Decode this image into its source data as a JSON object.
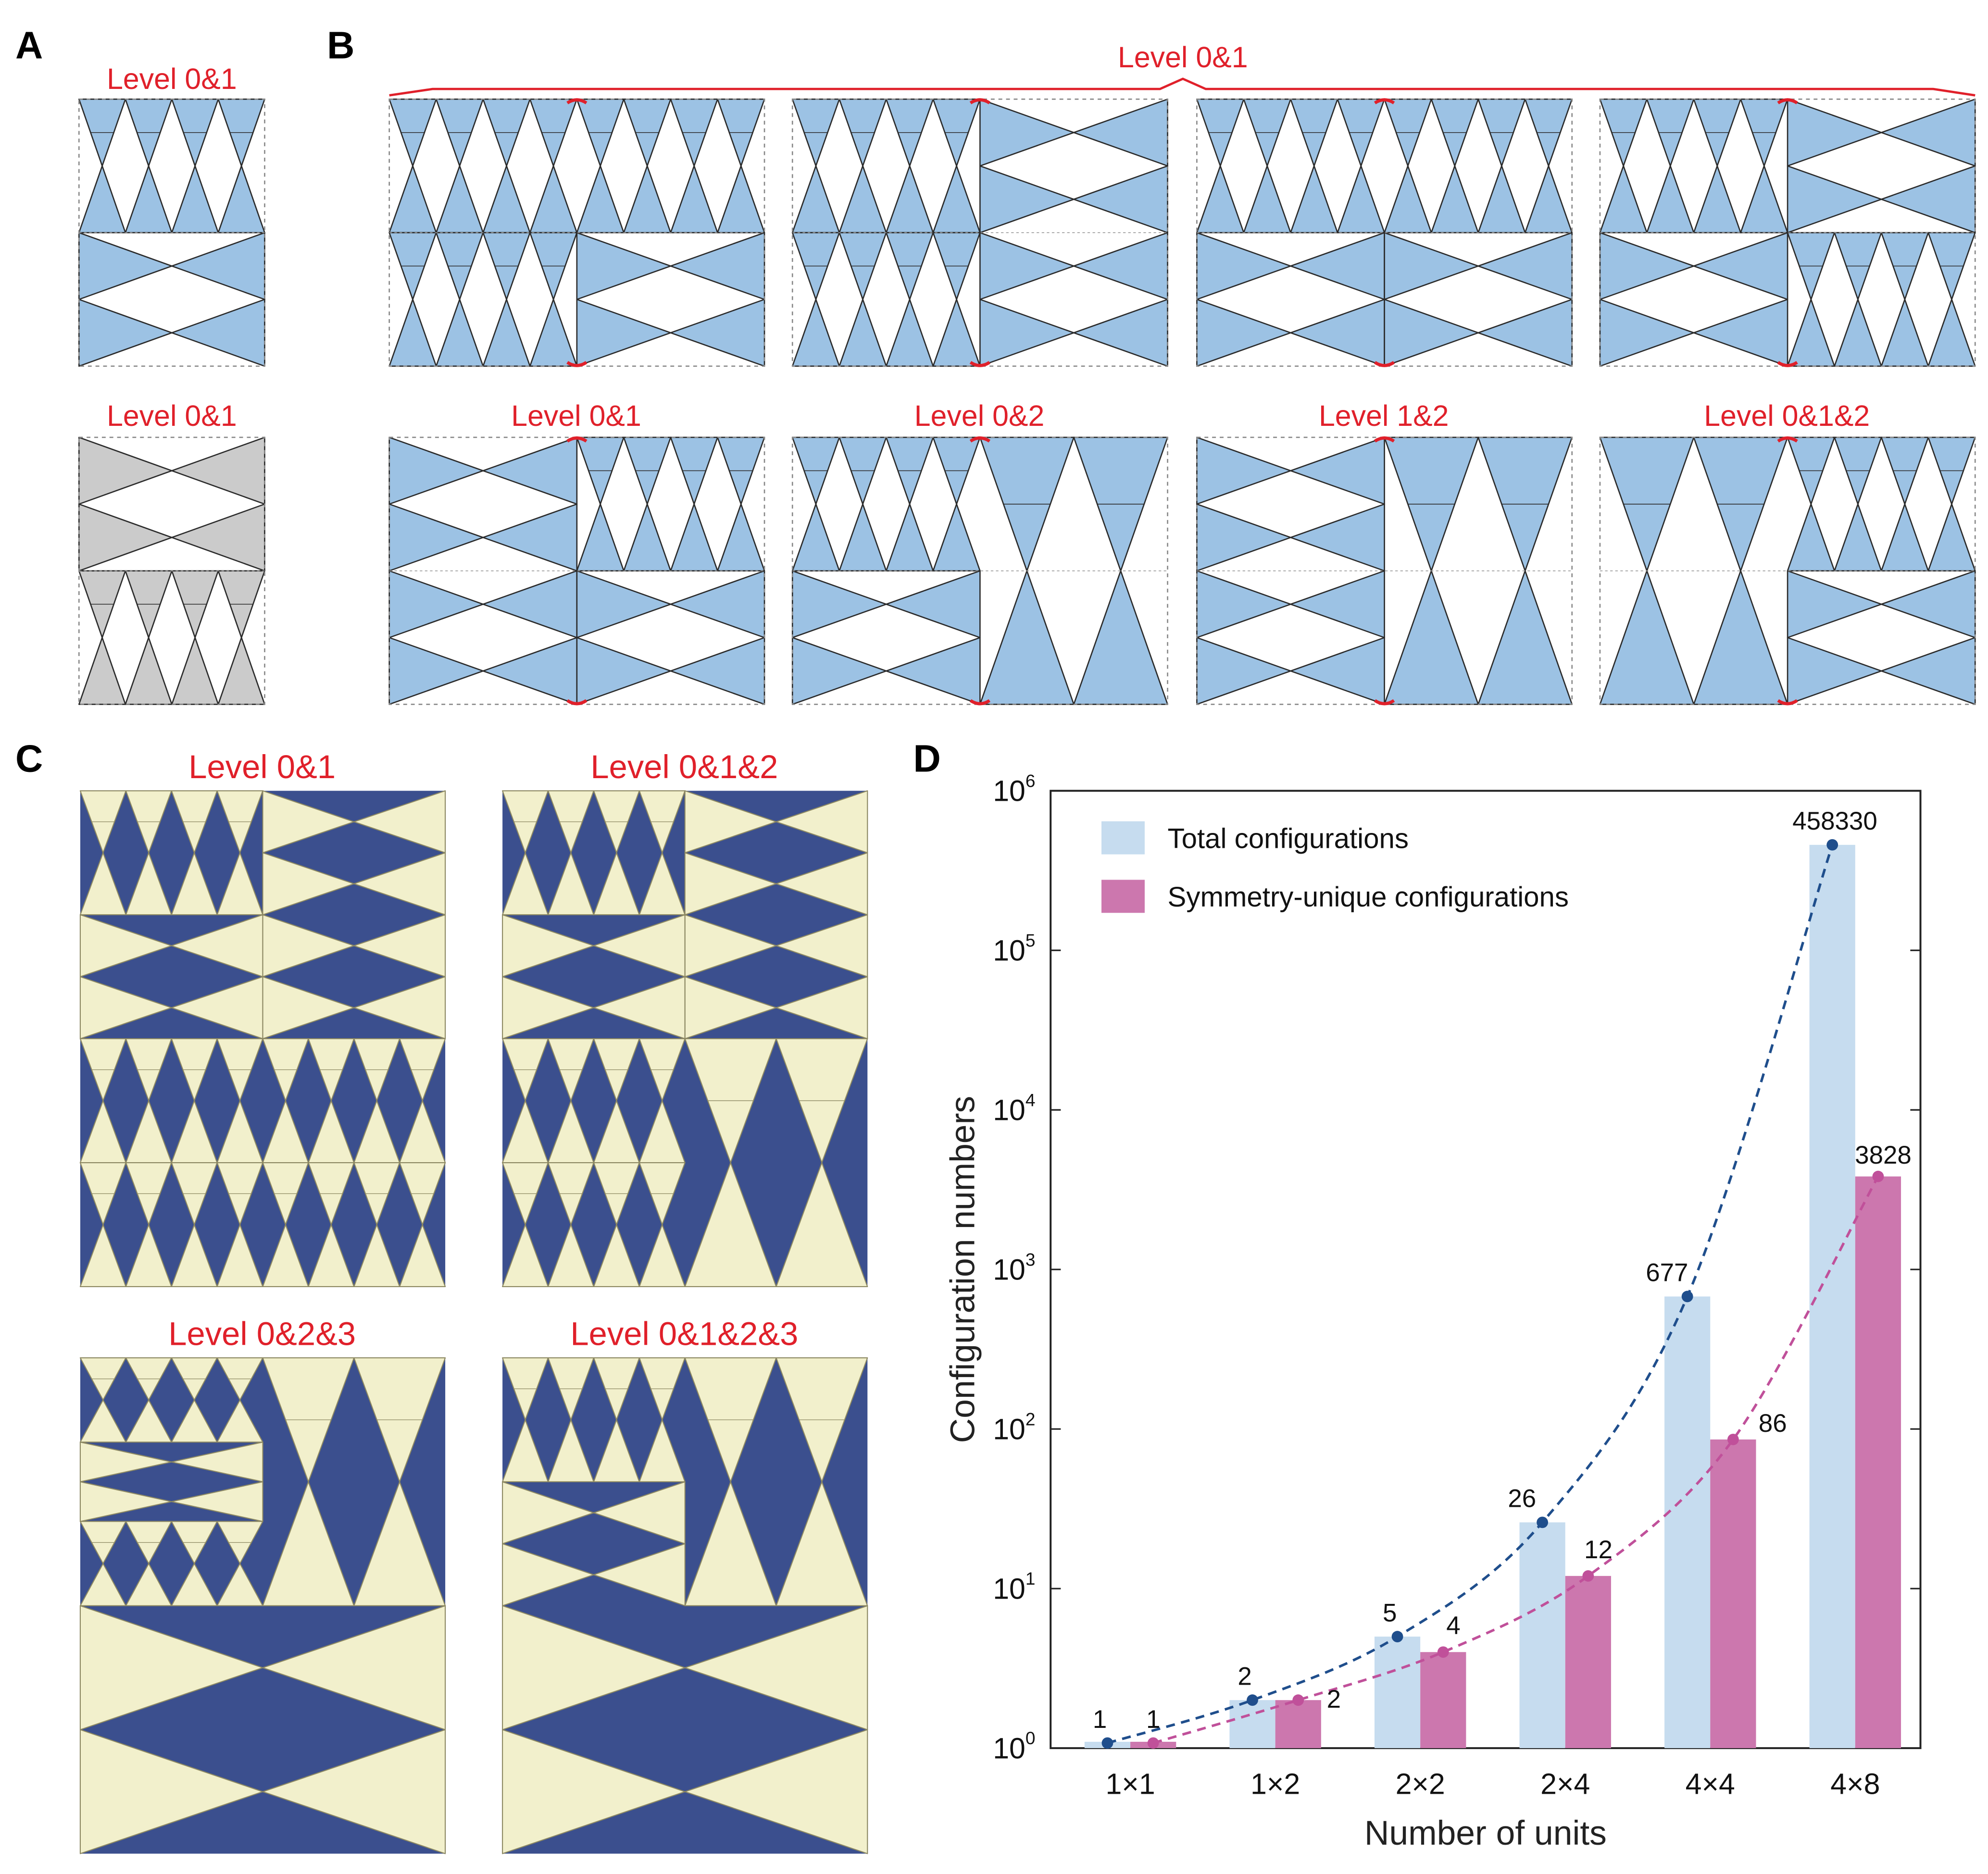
{
  "panels": {
    "A": {
      "label": "A",
      "titles": [
        "Level 0&1",
        "Level 0&1"
      ]
    },
    "B": {
      "label": "B",
      "bracket_title": "Level 0&1",
      "bottom_titles": [
        "Level 0&1",
        "Level 0&2",
        "Level 1&2",
        "Level 0&1&2"
      ]
    },
    "C": {
      "label": "C",
      "titles": [
        "Level 0&1",
        "Level 0&1&2",
        "Level 0&2&3",
        "Level 0&1&2&3"
      ]
    },
    "D": {
      "label": "D"
    }
  },
  "colors": {
    "accent_red": "#e0202a",
    "tile_blue": "#9cc2e4",
    "tile_gray": "#cbcbcb",
    "photo_bg": "#3b4f8e",
    "photo_tile": "#f2f0cc"
  },
  "chart_data": {
    "type": "bar",
    "categories": [
      "1×1",
      "1×2",
      "2×2",
      "2×4",
      "4×4",
      "4×8"
    ],
    "series": [
      {
        "name": "Total configurations",
        "values": [
          1,
          2,
          5,
          26,
          677,
          458330
        ],
        "color": "#c6dcef",
        "line_color": "#1f4e8c"
      },
      {
        "name": "Symmetry-unique configurations",
        "values": [
          1,
          2,
          4,
          12,
          86,
          3828
        ],
        "color": "#cc77ae",
        "line_color": "#c0509a"
      }
    ],
    "xlabel": "Number of units",
    "ylabel": "Configuration numbers",
    "yscale": "log",
    "ylim": [
      1,
      1000000
    ],
    "ytick_base": "10",
    "ytick_exponents": [
      "0",
      "1",
      "2",
      "3",
      "4",
      "5",
      "6"
    ],
    "legend_position": "top-left",
    "trend_lines": "dashed"
  }
}
